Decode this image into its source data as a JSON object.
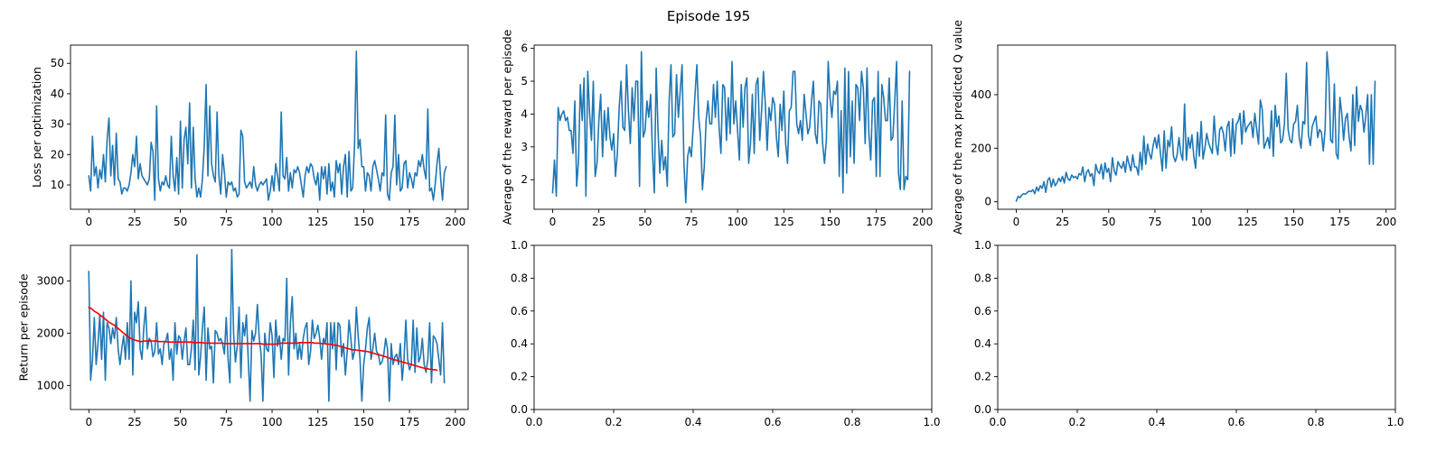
{
  "figure": {
    "title": "Episode 195"
  },
  "colors": {
    "series": "#1f77b4",
    "average": "#ff0000",
    "frame": "#000000",
    "background": "#ffffff"
  },
  "chart_data": [
    {
      "id": "loss",
      "type": "line",
      "ylabel": "Loss per optimization",
      "xlim": [
        -10,
        207
      ],
      "ylim": [
        2,
        56
      ],
      "xticks": [
        0,
        25,
        50,
        75,
        100,
        125,
        150,
        175,
        200
      ],
      "yticks": [
        10,
        20,
        30,
        40,
        50
      ],
      "series": [
        {
          "values": [
            13,
            8,
            26,
            13,
            16,
            9,
            15,
            12,
            20,
            11,
            25,
            32,
            13,
            23,
            10,
            27,
            12,
            11,
            7,
            9,
            9,
            8,
            10,
            14,
            20,
            16,
            26,
            12,
            17,
            13,
            12,
            11,
            10,
            12,
            24,
            21,
            5,
            36,
            12,
            8,
            11,
            10,
            13,
            10,
            9,
            26,
            13,
            8,
            19,
            7,
            31,
            9,
            25,
            29,
            17,
            37,
            9,
            29,
            12,
            6,
            9,
            6,
            12,
            23,
            43,
            13,
            36,
            17,
            13,
            11,
            34,
            13,
            7,
            20,
            14,
            6,
            11,
            10,
            11,
            8,
            9,
            6,
            7,
            28,
            26,
            11,
            9,
            10,
            11,
            9,
            16,
            10,
            8,
            10,
            11,
            10,
            11,
            12,
            5,
            8,
            13,
            8,
            17,
            13,
            8,
            34,
            13,
            12,
            19,
            8,
            14,
            9,
            15,
            14,
            16,
            14,
            10,
            6,
            13,
            16,
            14,
            17,
            16,
            12,
            10,
            14,
            5,
            16,
            12,
            16,
            7,
            17,
            8,
            11,
            6,
            18,
            14,
            17,
            7,
            16,
            20,
            6,
            21,
            8,
            9,
            23,
            54,
            22,
            25,
            16,
            16,
            8,
            14,
            13,
            8,
            16,
            18,
            15,
            12,
            8,
            14,
            13,
            33,
            7,
            5,
            14,
            16,
            33,
            10,
            20,
            8,
            9,
            17,
            18,
            9,
            14,
            12,
            9,
            14,
            13,
            18,
            16,
            20,
            15,
            12,
            35,
            8,
            9,
            5,
            10,
            17,
            22,
            12,
            5,
            14,
            16
          ]
        }
      ]
    },
    {
      "id": "reward",
      "type": "line",
      "ylabel": "Average of the reward per episode",
      "xlim": [
        -10,
        205
      ],
      "ylim": [
        1.1,
        6.1
      ],
      "xticks": [
        0,
        25,
        50,
        75,
        100,
        125,
        150,
        175,
        200
      ],
      "yticks": [
        2,
        3,
        4,
        5,
        6
      ],
      "series": [
        {
          "values": [
            1.6,
            2.6,
            1.5,
            4.2,
            3.8,
            4,
            4.1,
            3.8,
            3.9,
            3.5,
            3.5,
            2.8,
            4.4,
            1.8,
            2.6,
            4.9,
            3.8,
            5.1,
            1.5,
            5.3,
            4,
            3.2,
            5,
            2.1,
            2.5,
            3.8,
            4.6,
            2.7,
            4.1,
            3.2,
            4.2,
            3.3,
            2.9,
            3.4,
            2.1,
            2.8,
            4.2,
            5,
            3.6,
            3.5,
            5.5,
            4.1,
            3.1,
            4.8,
            3.8,
            5,
            5,
            1.8,
            5.9,
            3.3,
            3.5,
            4.4,
            3.9,
            4.6,
            2.8,
            1.6,
            5.4,
            3.5,
            2.2,
            3.2,
            2.3,
            2.7,
            1.8,
            4.4,
            5.5,
            3.3,
            3.4,
            5.2,
            3.9,
            4.7,
            5.5,
            2.5,
            1.3,
            2.7,
            3,
            2.7,
            3.6,
            4.6,
            5.5,
            3.9,
            3.3,
            1.7,
            2.4,
            3.8,
            4.4,
            3.7,
            3.7,
            4.9,
            3.9,
            5,
            3.6,
            2.8,
            4.9,
            4.8,
            3.2,
            4.5,
            3.4,
            5.6,
            3.7,
            4.4,
            3.5,
            2.6,
            4.9,
            3.6,
            4.8,
            5.1,
            2.5,
            3.1,
            4.6,
            2.8,
            4.9,
            5.1,
            3.2,
            4.1,
            5.3,
            4.3,
            2.9,
            4.2,
            3.8,
            4.5,
            4.3,
            3.3,
            2.7,
            4.3,
            3.5,
            4.7,
            3.1,
            2.5,
            4.1,
            4.2,
            5.3,
            5.3,
            3.7,
            3.4,
            3.8,
            3.2,
            4.6,
            4,
            3.4,
            3.6,
            4.4,
            5,
            3.4,
            3.1,
            4.4,
            4.3,
            3.1,
            2.5,
            3.2,
            5.6,
            4.5,
            3.9,
            4.7,
            4.6,
            5,
            2.1,
            4.1,
            1.6,
            5.4,
            2.2,
            5.3,
            2.7,
            4.4,
            2.5,
            4.9,
            4.8,
            3.8,
            5.3,
            4.8,
            3.1,
            5.4,
            3.4,
            2.6,
            4.4,
            4.5,
            2.1,
            5.3,
            2.1,
            4.9,
            4.5,
            3.8,
            3.8,
            5.1,
            3.2,
            3.3,
            4.4,
            5.6,
            2.2,
            1.7,
            4.4,
            1.7,
            2.1,
            2,
            5.3
          ]
        }
      ]
    },
    {
      "id": "qvalue",
      "type": "line",
      "ylabel": "Average of the max predicted Q value",
      "xlim": [
        -10,
        205
      ],
      "ylim": [
        -28,
        585
      ],
      "xticks": [
        0,
        25,
        50,
        75,
        100,
        125,
        150,
        175,
        200
      ],
      "yticks": [
        0,
        200,
        400
      ],
      "series": [
        {
          "values": [
            2,
            20,
            15,
            25,
            30,
            28,
            35,
            40,
            38,
            45,
            30,
            55,
            40,
            60,
            50,
            75,
            35,
            80,
            90,
            55,
            85,
            60,
            70,
            88,
            75,
            95,
            70,
            110,
            85,
            80,
            100,
            90,
            95,
            85,
            105,
            100,
            130,
            75,
            110,
            120,
            95,
            105,
            60,
            140,
            115,
            105,
            140,
            85,
            145,
            110,
            125,
            75,
            165,
            115,
            100,
            150,
            135,
            125,
            150,
            110,
            170,
            140,
            115,
            175,
            130,
            130,
            100,
            185,
            120,
            245,
            140,
            215,
            180,
            160,
            210,
            240,
            200,
            250,
            180,
            115,
            265,
            125,
            230,
            205,
            280,
            170,
            150,
            175,
            240,
            180,
            155,
            365,
            155,
            240,
            200,
            250,
            170,
            125,
            260,
            170,
            300,
            160,
            200,
            255,
            220,
            200,
            180,
            320,
            215,
            175,
            270,
            280,
            255,
            190,
            280,
            300,
            170,
            310,
            180,
            290,
            300,
            330,
            215,
            340,
            260,
            280,
            290,
            300,
            240,
            330,
            270,
            215,
            380,
            345,
            200,
            220,
            240,
            200,
            340,
            170,
            360,
            280,
            320,
            220,
            230,
            290,
            480,
            270,
            230,
            220,
            290,
            300,
            360,
            240,
            200,
            300,
            290,
            520,
            250,
            210,
            280,
            300,
            320,
            240,
            270,
            260,
            190,
            270,
            560,
            470,
            230,
            220,
            440,
            180,
            160,
            390,
            330,
            230,
            310,
            330,
            240,
            190,
            400,
            210,
            430,
            300,
            360,
            340,
            260,
            320,
            400,
            140,
            400,
            140,
            450
          ]
        }
      ]
    },
    {
      "id": "return",
      "type": "line",
      "ylabel": "Return per episode",
      "xlim": [
        -10,
        207
      ],
      "ylim": [
        540,
        3680
      ],
      "xticks": [
        0,
        25,
        50,
        75,
        100,
        125,
        150,
        175,
        200
      ],
      "yticks": [
        1000,
        2000,
        3000
      ],
      "series": [
        {
          "values": [
            3180,
            1100,
            1500,
            2300,
            1400,
            1800,
            2350,
            1500,
            2400,
            1100,
            2200,
            2100,
            1800,
            2100,
            1900,
            2300,
            1700,
            1400,
            1700,
            1950,
            1500,
            2200,
            1500,
            3000,
            1200,
            2400,
            2200,
            2600,
            1700,
            1500,
            2100,
            2500,
            1700,
            1900,
            1850,
            1550,
            1650,
            2200,
            1600,
            1700,
            1400,
            1800,
            1850,
            2000,
            1500,
            1700,
            1100,
            2200,
            1600,
            1950,
            1900,
            1500,
            1850,
            2100,
            1400,
            1400,
            1700,
            2250,
            1300,
            3500,
            1200,
            1550,
            2100,
            2500,
            1100,
            2100,
            1700,
            1750,
            1050,
            2050,
            2000,
            1850,
            1900,
            1800,
            1600,
            2300,
            1500,
            1050,
            3600,
            2000,
            1450,
            1750,
            2500,
            1150,
            2200,
            1950,
            2350,
            1500,
            700,
            2050,
            1850,
            2000,
            2550,
            1900,
            1600,
            700,
            2000,
            1700,
            1650,
            2200,
            1950,
            1150,
            2250,
            1750,
            1950,
            1500,
            1900,
            1850,
            3050,
            1200,
            2200,
            2700,
            1700,
            2000,
            1500,
            1800,
            1500,
            1900,
            2100,
            2200,
            1400,
            1650,
            2250,
            1900,
            2000,
            2150,
            1900,
            1500,
            1900,
            1800,
            2200,
            700,
            2200,
            1700,
            2200,
            1300,
            2200,
            2150,
            1550,
            1800,
            1200,
            1650,
            2250,
            1900,
            1500,
            1650,
            2500,
            1950,
            1500,
            700,
            1400,
            1700,
            2100,
            2300,
            1500,
            1700,
            2000,
            1650,
            1600,
            1400,
            1450,
            1600,
            1900,
            1700,
            700,
            1800,
            1400,
            1550,
            1600,
            1400,
            1800,
            1100,
            1500,
            2250,
            1500,
            1300,
            1400,
            2250,
            1250,
            2100,
            1450,
            1550,
            1900,
            1400,
            1250,
            1500,
            2200,
            1050,
            1950,
            1900,
            1800,
            1500,
            1200,
            2200,
            1050
          ]
        },
        {
          "values": [
            2490,
            2480,
            2450,
            2420,
            2400,
            2380,
            2350,
            2320,
            2300,
            2270,
            2240,
            2210,
            2190,
            2170,
            2150,
            2120,
            2090,
            2060,
            2030,
            2000,
            1970,
            1940,
            1920,
            1900,
            1880,
            1870,
            1860,
            1850,
            1840,
            1840,
            1850,
            1850,
            1850,
            1850,
            1850,
            1850,
            1850,
            1850,
            1840,
            1840,
            1840,
            1840,
            1840,
            1830,
            1830,
            1830,
            1830,
            1830,
            1830,
            1830,
            1830,
            1830,
            1830,
            1830,
            1830,
            1830,
            1830,
            1820,
            1820,
            1820,
            1820,
            1820,
            1820,
            1810,
            1810,
            1810,
            1810,
            1810,
            1810,
            1810,
            1810,
            1810,
            1810,
            1810,
            1800,
            1800,
            1800,
            1800,
            1800,
            1800,
            1800,
            1800,
            1800,
            1800,
            1800,
            1800,
            1800,
            1800,
            1800,
            1800,
            1800,
            1800,
            1800,
            1800,
            1800,
            1790,
            1790,
            1790,
            1790,
            1790,
            1790,
            1790,
            1790,
            1800,
            1800,
            1810,
            1810,
            1810,
            1810,
            1810,
            1810,
            1810,
            1810,
            1810,
            1810,
            1820,
            1820,
            1820,
            1820,
            1820,
            1820,
            1820,
            1820,
            1810,
            1810,
            1810,
            1810,
            1800,
            1800,
            1800,
            1790,
            1790,
            1790,
            1780,
            1770,
            1770,
            1760,
            1750,
            1740,
            1730,
            1720,
            1710,
            1700,
            1690,
            1680,
            1680,
            1680,
            1670,
            1670,
            1660,
            1660,
            1650,
            1650,
            1640,
            1630,
            1620,
            1610,
            1600,
            1590,
            1580,
            1570,
            1560,
            1550,
            1540,
            1520,
            1510,
            1500,
            1490,
            1480,
            1470,
            1460,
            1450,
            1440,
            1430,
            1420,
            1410,
            1400,
            1390,
            1380,
            1370,
            1360,
            1350,
            1340,
            1330,
            1320,
            1320,
            1310,
            1310,
            1300,
            1300,
            1290
          ]
        }
      ]
    },
    {
      "id": "empty1",
      "type": "line",
      "xlim": [
        0,
        1
      ],
      "ylim": [
        0,
        1
      ],
      "xticks": [
        0.0,
        0.2,
        0.4,
        0.6,
        0.8,
        1.0
      ],
      "yticks": [
        0.0,
        0.2,
        0.4,
        0.6,
        0.8,
        1.0
      ],
      "series": []
    },
    {
      "id": "empty2",
      "type": "line",
      "xlim": [
        0,
        1
      ],
      "ylim": [
        0,
        1
      ],
      "xticks": [
        0.0,
        0.2,
        0.4,
        0.6,
        0.8,
        1.0
      ],
      "yticks": [
        0.0,
        0.2,
        0.4,
        0.6,
        0.8,
        1.0
      ],
      "series": []
    }
  ]
}
